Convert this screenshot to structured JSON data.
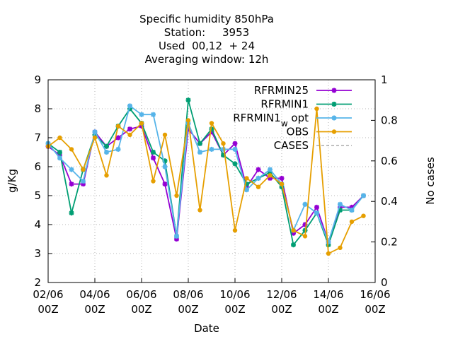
{
  "chart_data": {
    "type": "line",
    "title_lines": [
      "Specific humidity 850hPa",
      "Station:     3953",
      "Used  00,12  + 24",
      "Averaging window: 12h"
    ],
    "xlabel": "Date",
    "ylabel": "g/Kg",
    "y2label": "No cases",
    "ylim": [
      2,
      9
    ],
    "y2lim": [
      0,
      1
    ],
    "xlim": [
      0,
      14
    ],
    "grid": true,
    "legend_position": "top-right",
    "x_ticks": [
      {
        "x": 0,
        "line1": "02/06",
        "line2": "00Z"
      },
      {
        "x": 2,
        "line1": "04/06",
        "line2": "00Z"
      },
      {
        "x": 4,
        "line1": "06/06",
        "line2": "00Z"
      },
      {
        "x": 6,
        "line1": "08/06",
        "line2": "00Z"
      },
      {
        "x": 8,
        "line1": "10/06",
        "line2": "00Z"
      },
      {
        "x": 10,
        "line1": "12/06",
        "line2": "00Z"
      },
      {
        "x": 12,
        "line1": "14/06",
        "line2": "00Z"
      },
      {
        "x": 14,
        "line1": "16/06",
        "line2": "00Z"
      }
    ],
    "y_ticks": [
      2,
      3,
      4,
      5,
      6,
      7,
      8,
      9
    ],
    "y2_ticks": [
      {
        "v": 0,
        "label": "0"
      },
      {
        "v": 0.2,
        "label": "0.2"
      },
      {
        "v": 0.4,
        "label": "0.4"
      },
      {
        "v": 0.6,
        "label": "0.6"
      },
      {
        "v": 0.8,
        "label": "0.8"
      },
      {
        "v": 1,
        "label": "1"
      }
    ],
    "x": [
      0,
      0.5,
      1,
      1.5,
      2,
      2.5,
      3,
      3.5,
      4,
      4.5,
      5,
      5.5,
      6,
      6.5,
      7,
      7.5,
      8,
      8.5,
      9,
      9.5,
      10,
      10.5,
      11,
      11.5,
      12,
      12.5,
      13,
      13.5
    ],
    "series": [
      {
        "name": "RFRMIN25",
        "color": "#9400d3",
        "marker": "star",
        "values": [
          6.7,
          6.4,
          5.4,
          5.4,
          7.2,
          6.7,
          7.0,
          7.3,
          7.4,
          6.3,
          5.4,
          3.5,
          7.3,
          6.8,
          7.2,
          6.4,
          6.8,
          5.3,
          5.9,
          5.6,
          5.6,
          3.7,
          4.0,
          4.6,
          3.4,
          4.6,
          4.6,
          5.0
        ]
      },
      {
        "name": "RFRMIN1",
        "color": "#009e73",
        "marker": "star",
        "values": [
          6.8,
          6.5,
          4.4,
          5.9,
          7.1,
          6.7,
          7.4,
          8.0,
          7.5,
          6.5,
          6.2,
          3.6,
          8.3,
          6.8,
          7.3,
          6.4,
          6.1,
          5.4,
          5.6,
          5.8,
          5.3,
          3.3,
          3.8,
          4.4,
          3.3,
          4.5,
          4.5,
          5.0
        ]
      },
      {
        "name": "RFRMIN1_w opt",
        "color": "#56b4e9",
        "marker": "star",
        "values": [
          6.8,
          6.3,
          5.9,
          5.5,
          7.2,
          6.5,
          6.6,
          8.1,
          7.8,
          7.8,
          6.0,
          3.6,
          7.5,
          6.5,
          6.6,
          6.6,
          6.6,
          5.2,
          5.6,
          5.9,
          5.4,
          3.8,
          4.7,
          4.4,
          3.4,
          4.7,
          4.5,
          5.0
        ]
      },
      {
        "name": "OBS",
        "color": "#e69f00",
        "marker": "circle",
        "values": [
          6.7,
          7.0,
          6.6,
          5.9,
          7.0,
          5.7,
          7.4,
          7.1,
          7.5,
          5.5,
          7.1,
          5.0,
          7.6,
          4.5,
          7.5,
          6.8,
          3.8,
          5.6,
          5.3,
          5.7,
          5.4,
          3.8,
          3.6,
          8.0,
          3.0,
          3.2,
          4.1,
          4.3
        ]
      }
    ],
    "legend": [
      {
        "label": "RFRMIN25",
        "style": "line"
      },
      {
        "label": "RFRMIN1",
        "style": "line"
      },
      {
        "label": "RFRMIN1",
        "sub": "w",
        "suffix": " opt",
        "style": "line"
      },
      {
        "label": "OBS",
        "style": "line"
      },
      {
        "label": "CASES",
        "style": "dashed",
        "color": "#808080"
      }
    ]
  }
}
